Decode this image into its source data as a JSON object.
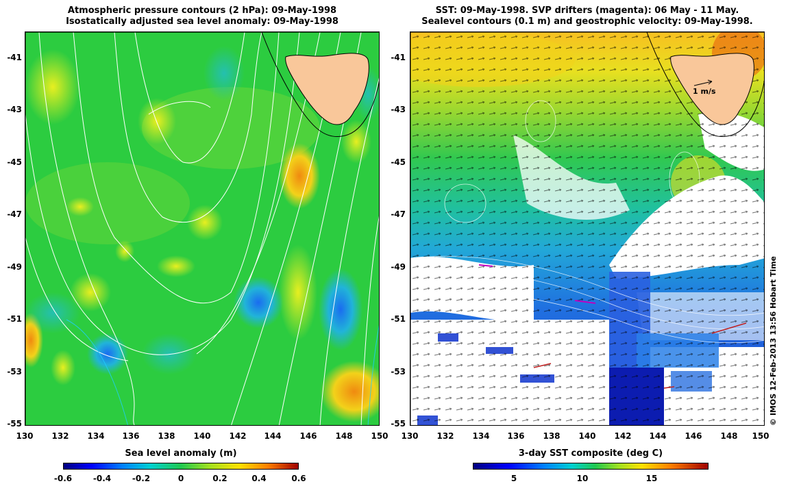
{
  "left_panel": {
    "title_line1": "Atmospheric pressure contours (2 hPa): 09-May-1998",
    "title_line2": "Isostatically adjusted sea level anomaly: 09-May-1998",
    "y_ticks": [
      "-41",
      "-43",
      "-45",
      "-47",
      "-49",
      "-51",
      "-53",
      "-55"
    ],
    "x_ticks": [
      "130",
      "132",
      "134",
      "136",
      "138",
      "140",
      "142",
      "144",
      "146",
      "148",
      "150"
    ],
    "colorbar_label": "Sea level anomaly (m)",
    "colorbar_ticks": [
      "-0.6",
      "-0.4",
      "-0.2",
      "0",
      "0.2",
      "0.4",
      "0.6"
    ]
  },
  "right_panel": {
    "title_line1": "SST: 09-May-1998. SVP drifters (magenta): 06 May - 11 May.",
    "title_line2": "Sealevel contours (0.1 m) and geostrophic velocity: 09-May-1998.",
    "y_ticks": [
      "-41",
      "-43",
      "-45",
      "-47",
      "-49",
      "-51",
      "-53",
      "-55"
    ],
    "x_ticks": [
      "130",
      "132",
      "134",
      "136",
      "138",
      "140",
      "142",
      "144",
      "146",
      "148",
      "150"
    ],
    "scale_label": "1 m/s",
    "colorbar_label": "3-day SST composite (deg C)",
    "colorbar_ticks": [
      "5",
      "10",
      "15"
    ]
  },
  "copyright": "© IMOS 12-Feb-2013 13:56 Hobart Time",
  "colors": {
    "land": "#f9c79a",
    "ssh_base": "#22c84a",
    "sst_warm": "#f2d21a",
    "sst_cold": "#1c3fd0",
    "cloud_mask": "#ffffff",
    "pressure_contours": "#ffffff",
    "drifters": "#c000c0"
  }
}
